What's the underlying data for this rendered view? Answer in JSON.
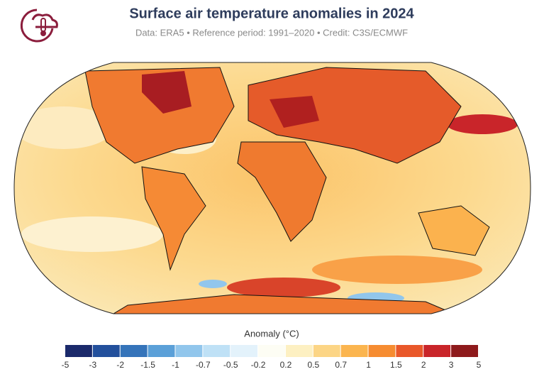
{
  "header": {
    "title": "Surface air temperature anomalies in 2024",
    "subtitle": "Data: ERA5 • Reference period: 1991–2020 • Credit: C3S/ECMWF"
  },
  "colorbar": {
    "label": "Anomaly (°C)",
    "ticks": [
      -5,
      -3,
      -2,
      -1.5,
      -1,
      -0.7,
      -0.5,
      -0.2,
      0.2,
      0.5,
      0.7,
      1,
      1.5,
      2,
      3,
      5
    ],
    "colors": [
      "#1b2a6b",
      "#23509c",
      "#3574ba",
      "#5ba0d8",
      "#91c6ec",
      "#bfe1f6",
      "#e3f2fb",
      "#fdfdf4",
      "#fdf0c2",
      "#fcd585",
      "#fbb54f",
      "#f68c31",
      "#e9582a",
      "#c9252a",
      "#8e1a1c"
    ]
  }
}
